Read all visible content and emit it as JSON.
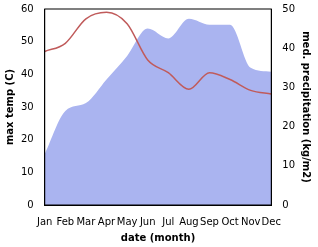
{
  "chart_data": {
    "type": "line",
    "categories": [
      "Jan",
      "Feb",
      "Mar",
      "Apr",
      "May",
      "Jun",
      "Jul",
      "Aug",
      "Sep",
      "Oct",
      "Nov",
      "Dec"
    ],
    "xlabel": "date (month)",
    "ylabel": "max temp (C)",
    "y2label": "med. precipitation (kg/m2)",
    "ylim": [
      0,
      60
    ],
    "yticks": [
      0,
      10,
      20,
      30,
      40,
      50,
      60
    ],
    "y2lim": [
      0,
      50
    ],
    "y2ticks": [
      0,
      10,
      20,
      30,
      40,
      50
    ],
    "grid": false,
    "series": [
      {
        "type": "area",
        "axis": "y2",
        "color": "#aab4f0",
        "values": [
          13,
          24,
          26,
          32,
          38,
          45,
          42.5,
          47.5,
          46,
          46,
          35,
          34
        ]
      },
      {
        "type": "line",
        "color": "#c05b5b",
        "values": [
          47,
          49.5,
          57,
          59,
          55.5,
          44.4,
          40.5,
          35.4,
          40.5,
          38.4,
          35.1,
          34
        ]
      }
    ]
  }
}
